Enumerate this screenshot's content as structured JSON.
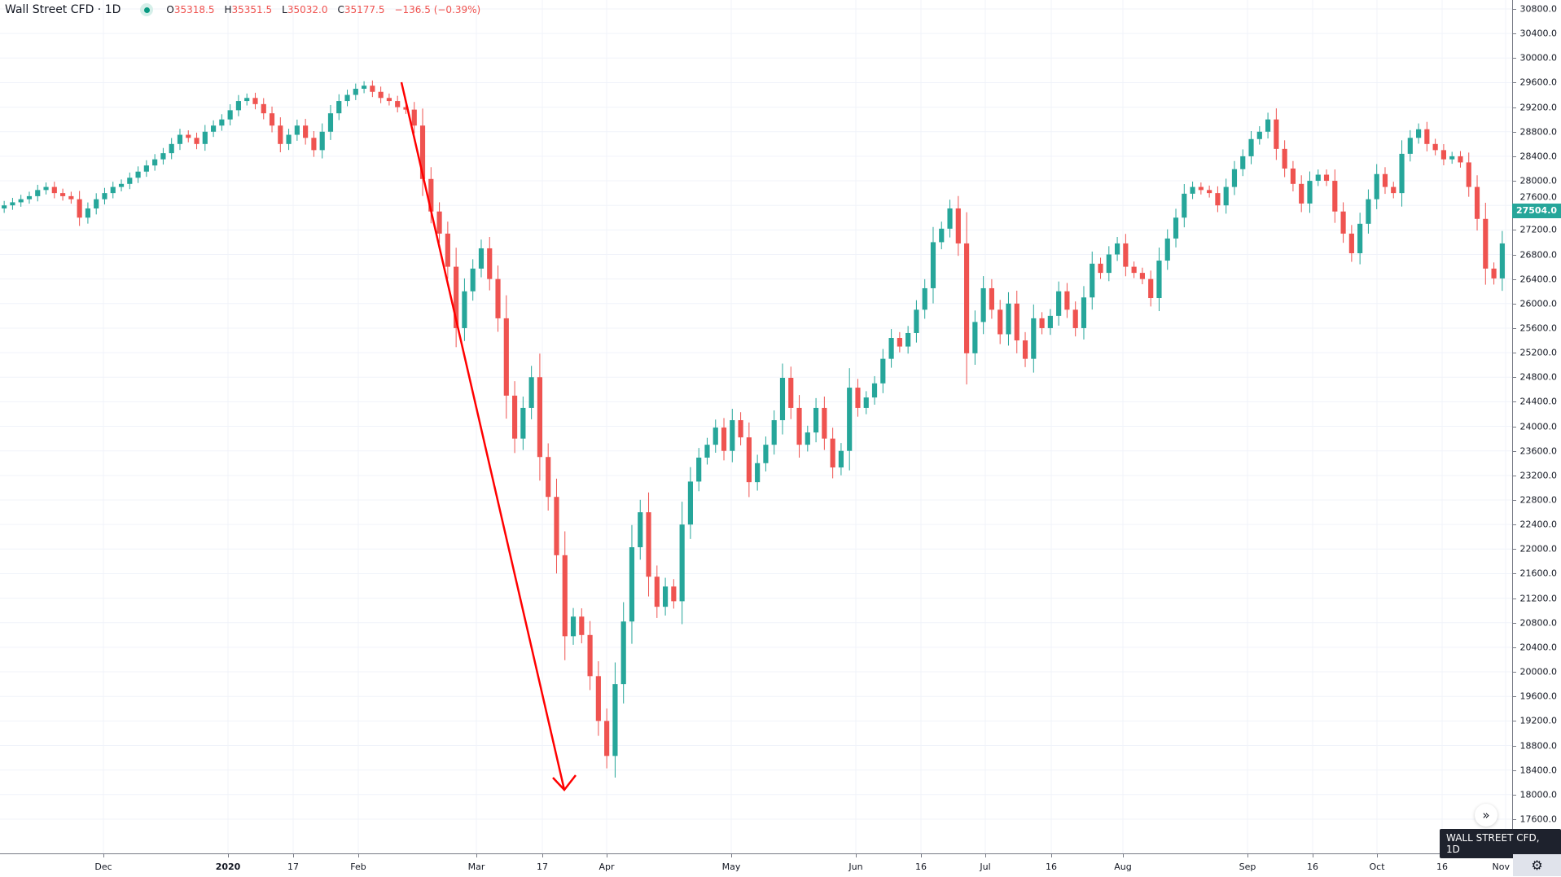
{
  "legend": {
    "symbol": "Wall Street CFD · 1D",
    "open_label": "O",
    "open": "35318.5",
    "high_label": "H",
    "high": "35351.5",
    "low_label": "L",
    "low": "35032.0",
    "close_label": "C",
    "close": "35177.5",
    "change": "−136.5 (−0.39%)"
  },
  "last_price": "27504.0",
  "tooltip": "WALL STREET CFD, 1D",
  "icons": {
    "scroll": "double-chevron-right-icon",
    "settings": "gear-icon",
    "status": "market-status-dot-icon"
  },
  "colors": {
    "up": "#26a69a",
    "down": "#ef5350",
    "annotation": "#ff0000"
  },
  "chart_data": {
    "type": "candlestick",
    "price_axis": {
      "ticks": [
        30800,
        30400,
        30000,
        29600,
        29200,
        28800,
        28400,
        28000,
        27600,
        27200,
        26800,
        26400,
        26000,
        25600,
        25200,
        24800,
        24400,
        24000,
        23600,
        23200,
        22800,
        22400,
        22000,
        21600,
        21200,
        20800,
        20400,
        20000,
        19600,
        19200,
        18800,
        18400,
        18000,
        17600
      ],
      "range": [
        17400,
        30950
      ]
    },
    "time_axis": {
      "labels": [
        "Dec",
        "2020",
        "17",
        "Feb",
        "Mar",
        "17",
        "Apr",
        "May",
        "Jun",
        "16",
        "Jul",
        "16",
        "Aug",
        "Sep",
        "16",
        "Oct",
        "16",
        "Nov"
      ]
    },
    "grid": true,
    "first_open": 27550,
    "closes": [
      27600,
      27650,
      27700,
      27750,
      27850,
      27900,
      27800,
      27750,
      27700,
      27400,
      27550,
      27700,
      27800,
      27900,
      27950,
      28050,
      28150,
      28250,
      28350,
      28450,
      28600,
      28750,
      28700,
      28600,
      28800,
      28900,
      29000,
      29150,
      29300,
      29350,
      29250,
      29100,
      28900,
      28600,
      28750,
      28900,
      28700,
      28500,
      28800,
      29100,
      29300,
      29400,
      29500,
      29550,
      29450,
      29350,
      29300,
      29200,
      29160,
      28900,
      28030,
      27500,
      27140,
      26600,
      25600,
      26200,
      26570,
      26900,
      26400,
      25760,
      24500,
      23800,
      24300,
      24800,
      23500,
      22850,
      21900,
      20580,
      20900,
      20600,
      19930,
      19200,
      18630,
      19800,
      20820,
      22030,
      22600,
      21550,
      21060,
      21390,
      21150,
      22400,
      23100,
      23490,
      23700,
      23980,
      23600,
      24100,
      23820,
      23090,
      23400,
      23700,
      24100,
      24790,
      24300,
      23700,
      23900,
      24300,
      23800,
      23330,
      23600,
      24630,
      24300,
      24470,
      24700,
      25100,
      25440,
      25300,
      25520,
      25900,
      26250,
      27000,
      27220,
      27550,
      26980,
      25190,
      25700,
      26250,
      25900,
      25500,
      26000,
      25400,
      25100,
      25760,
      25600,
      25800,
      26200,
      25900,
      25600,
      26100,
      26650,
      26500,
      26800,
      26980,
      26600,
      26500,
      26400,
      26090,
      26700,
      27060,
      27400,
      27790,
      27900,
      27850,
      27800,
      27600,
      27900,
      28190,
      28400,
      28680,
      28800,
      29000,
      28520,
      28200,
      27950,
      27630,
      28000,
      28100,
      28000,
      27500,
      27140,
      26820,
      27300,
      27700,
      28110,
      27900,
      27800,
      28440,
      28700,
      28840,
      28600,
      28500,
      28350,
      28400,
      28300,
      27900,
      27380,
      26570,
      26410,
      26980
    ]
  }
}
